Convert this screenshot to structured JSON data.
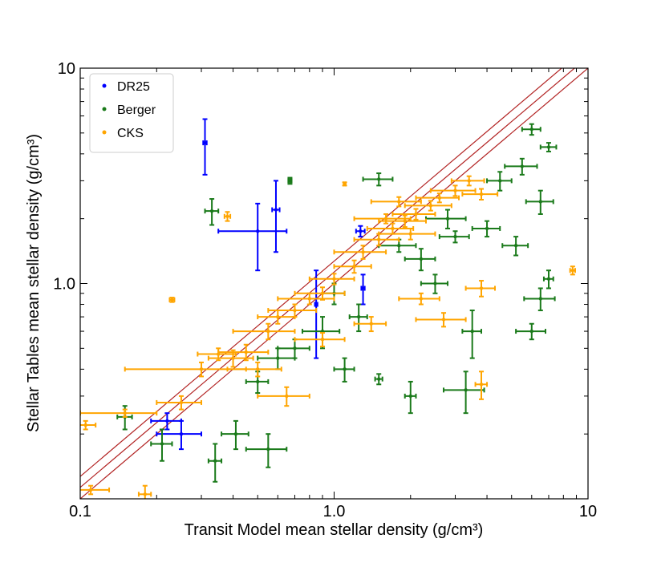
{
  "chart_data": {
    "type": "scatter",
    "xlabel": "Transit Model mean stellar density (g/cm³)",
    "ylabel": "Stellar Tables mean stellar density (g/cm³)",
    "xscale": "log",
    "yscale": "log",
    "xlim": [
      0.1,
      10
    ],
    "ylim": [
      0.1,
      10
    ],
    "xticks": [
      0.1,
      {
        "value": 1,
        "label": "1.0"
      },
      10
    ],
    "yticks": [
      {
        "value": 1,
        "label": "1.0"
      },
      10
    ],
    "xminorticks": [
      0.2,
      0.3,
      0.4,
      0.5,
      0.6,
      0.7,
      0.8,
      0.9,
      2,
      3,
      4,
      5,
      6,
      7,
      8,
      9
    ],
    "yminorticks": [
      0.2,
      0.3,
      0.4,
      0.5,
      0.6,
      0.7,
      0.8,
      0.9,
      2,
      3,
      4,
      5,
      6,
      7,
      8,
      9
    ],
    "legend": "upper left",
    "reference_lines": {
      "color": "#b22222",
      "factors": [
        1.0,
        1.13,
        1.27
      ]
    },
    "series": [
      {
        "name": "DR25",
        "color": "#0000ff",
        "x": [
          0.31,
          0.5,
          0.59,
          0.22,
          0.25,
          1.27,
          0.85,
          1.3
        ],
        "y": [
          4.5,
          1.75,
          2.2,
          0.23,
          0.2,
          1.75,
          0.8,
          0.95
        ],
        "xerr": [
          0.005,
          0.15,
          0.02,
          0.03,
          0.05,
          0.05,
          0.01,
          0.02
        ],
        "yerr": [
          1.3,
          0.6,
          0.8,
          0.02,
          0.03,
          0.1,
          0.35,
          0.15
        ]
      },
      {
        "name": "Berger",
        "color": "#1a7a1a",
        "x": [
          0.33,
          0.67,
          1.5,
          6.0,
          7.0,
          5.5,
          4.5,
          6.5,
          5.2,
          7.0,
          6.5,
          6.0,
          3.5,
          3.3,
          2.0,
          1.5,
          1.1,
          0.9,
          0.55,
          0.34,
          0.41,
          0.15,
          0.21,
          2.5,
          2.2,
          1.8,
          3.0,
          0.7,
          0.6,
          1.25,
          2.8,
          4.0,
          1.0,
          0.5
        ],
        "y": [
          2.17,
          3.0,
          3.05,
          5.2,
          4.3,
          3.5,
          3.0,
          2.4,
          1.5,
          1.05,
          0.85,
          0.6,
          0.6,
          0.32,
          0.3,
          0.36,
          0.4,
          0.6,
          0.17,
          0.15,
          0.2,
          0.24,
          0.18,
          1.0,
          1.3,
          1.5,
          1.65,
          0.5,
          0.45,
          0.7,
          2.0,
          1.8,
          0.9,
          0.35
        ],
        "xerr": [
          0.02,
          0.01,
          0.2,
          0.5,
          0.5,
          0.8,
          0.5,
          0.8,
          0.6,
          0.3,
          0.9,
          0.8,
          0.3,
          0.6,
          0.1,
          0.05,
          0.1,
          0.15,
          0.1,
          0.02,
          0.05,
          0.01,
          0.02,
          0.3,
          0.3,
          0.3,
          0.4,
          0.1,
          0.1,
          0.1,
          0.5,
          0.5,
          0.1,
          0.05
        ],
        "yerr": [
          0.3,
          0.1,
          0.2,
          0.3,
          0.2,
          0.3,
          0.3,
          0.3,
          0.15,
          0.1,
          0.1,
          0.05,
          0.15,
          0.07,
          0.05,
          0.02,
          0.05,
          0.1,
          0.03,
          0.03,
          0.03,
          0.03,
          0.03,
          0.1,
          0.15,
          0.1,
          0.1,
          0.05,
          0.05,
          0.1,
          0.2,
          0.15,
          0.1,
          0.04
        ]
      },
      {
        "name": "CKS",
        "color": "#ffa500",
        "x": [
          0.105,
          0.11,
          0.18,
          0.23,
          0.38,
          1.1,
          8.7,
          3.8,
          3.8,
          2.7,
          0.15,
          0.25,
          0.3,
          0.4,
          0.45,
          0.35,
          0.55,
          0.6,
          0.7,
          0.8,
          0.9,
          1.0,
          1.2,
          1.3,
          1.5,
          1.7,
          1.9,
          2.1,
          2.4,
          2.6,
          3.0,
          3.4,
          3.8,
          2.0,
          1.6,
          1.8,
          0.5,
          0.65,
          1.4,
          2.2,
          0.9
        ],
        "y": [
          0.22,
          0.11,
          0.105,
          0.84,
          2.05,
          2.9,
          1.15,
          0.95,
          0.34,
          0.68,
          0.25,
          0.28,
          0.4,
          0.45,
          0.48,
          0.47,
          0.6,
          0.7,
          0.75,
          0.85,
          0.9,
          1.05,
          1.2,
          1.4,
          1.6,
          1.8,
          1.95,
          2.1,
          2.3,
          2.5,
          2.7,
          3.0,
          2.6,
          1.7,
          2.0,
          2.4,
          0.4,
          0.3,
          0.65,
          0.85,
          0.55
        ],
        "xerr": [
          0.01,
          0.02,
          0.01,
          0.005,
          0.01,
          0.01,
          0.2,
          0.5,
          0.2,
          0.6,
          0.05,
          0.05,
          0.15,
          0.08,
          0.1,
          0.06,
          0.15,
          0.1,
          0.15,
          0.2,
          0.2,
          0.2,
          0.2,
          0.3,
          0.3,
          0.35,
          0.4,
          0.4,
          0.5,
          0.5,
          0.6,
          0.5,
          0.6,
          0.5,
          0.4,
          0.4,
          0.12,
          0.15,
          0.2,
          0.4,
          0.2
        ],
        "yerr": [
          0.01,
          0.005,
          0.01,
          0.02,
          0.1,
          0.05,
          0.05,
          0.08,
          0.05,
          0.05,
          0.01,
          0.02,
          0.03,
          0.04,
          0.04,
          0.03,
          0.05,
          0.05,
          0.05,
          0.05,
          0.06,
          0.06,
          0.08,
          0.1,
          0.1,
          0.1,
          0.12,
          0.12,
          0.12,
          0.12,
          0.15,
          0.15,
          0.15,
          0.1,
          0.1,
          0.12,
          0.03,
          0.03,
          0.05,
          0.05,
          0.04
        ]
      }
    ]
  }
}
